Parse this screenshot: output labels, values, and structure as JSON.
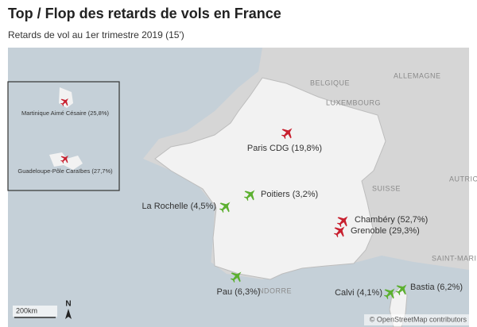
{
  "header": {
    "title": "Top / Flop des retards de vols en France",
    "subtitle": "Retards de vol au 1er trimestre 2019 (15')"
  },
  "airports": [
    {
      "label": "Martinique Aimé Césaire (25,8%)",
      "color": "#c8202f"
    },
    {
      "label": "Guadeloupe-Pôle Caraïbes (27,7%)",
      "color": "#c8202f"
    },
    {
      "label": "Paris CDG (19,8%)",
      "color": "#c8202f"
    },
    {
      "label": "Poitiers (3,2%)",
      "color": "#5cb030"
    },
    {
      "label": "La Rochelle (4,5%)",
      "color": "#5cb030"
    },
    {
      "label": "Chambéry (52,7%)",
      "color": "#c8202f"
    },
    {
      "label": "Grenoble (29,3%)",
      "color": "#c8202f"
    },
    {
      "label": "Pau (6,3%)",
      "color": "#5cb030"
    },
    {
      "label": "Calvi (4,1%)",
      "color": "#5cb030"
    },
    {
      "label": "Bastia (6,2%)",
      "color": "#5cb030"
    }
  ],
  "map_labels": [
    "BELGIQUE",
    "ALLEMAGNE",
    "LUXEMBOURG",
    "SUISSE",
    "AUTRIC",
    "SAINT-MARI",
    "NDORRE"
  ],
  "scale": "200km",
  "north": "N",
  "attribution": "© OpenStreetMap contributors"
}
